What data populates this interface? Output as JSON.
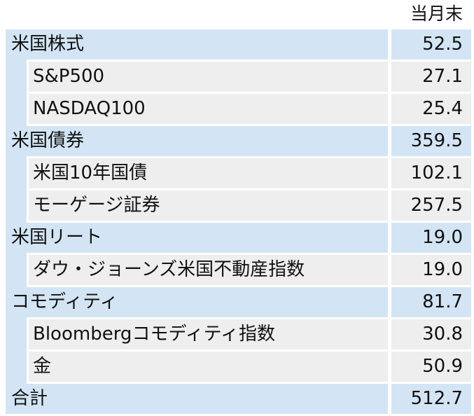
{
  "header": {
    "label": "当月末"
  },
  "rows": [
    {
      "type": "category",
      "label": "米国株式",
      "value": "52.5"
    },
    {
      "type": "sub",
      "label": "S&P500",
      "value": "27.1"
    },
    {
      "type": "sub",
      "label": "NASDAQ100",
      "value": "25.4"
    },
    {
      "type": "category",
      "label": "米国債券",
      "value": "359.5"
    },
    {
      "type": "sub",
      "label": "米国10年国債",
      "value": "102.1"
    },
    {
      "type": "sub",
      "label": "モーゲージ証券",
      "value": "257.5"
    },
    {
      "type": "category",
      "label": "米国リート",
      "value": "19.0"
    },
    {
      "type": "sub",
      "label": "ダウ・ジョーンズ米国不動産指数",
      "value": "19.0"
    },
    {
      "type": "category",
      "label": "コモディティ",
      "value": "81.7"
    },
    {
      "type": "sub",
      "label": "Bloombergコモディティ指数",
      "value": "30.8"
    },
    {
      "type": "sub",
      "label": "金",
      "value": "50.9"
    },
    {
      "type": "category",
      "label": "合計",
      "value": "512.7"
    }
  ]
}
